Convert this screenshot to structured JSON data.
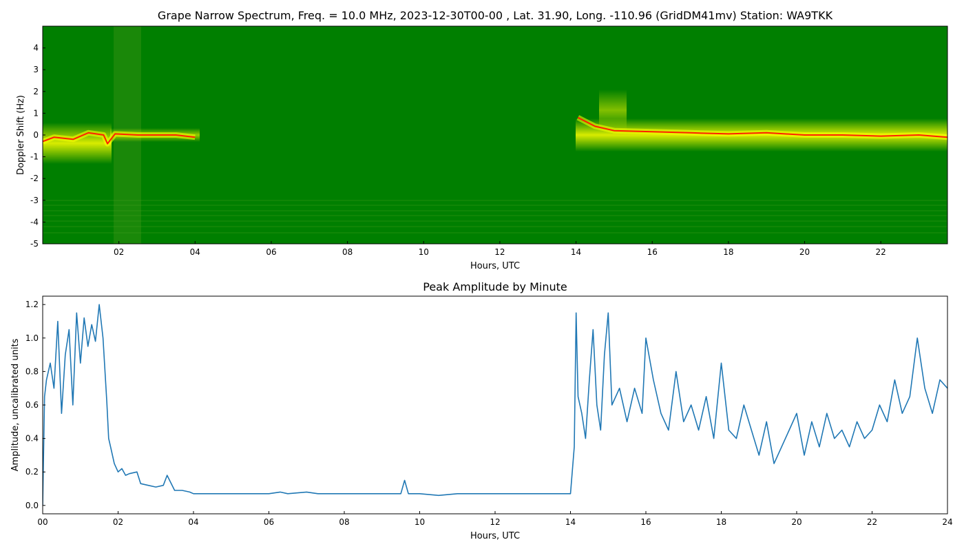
{
  "chart_data": [
    {
      "type": "heatmap",
      "title": "Grape Narrow Spectrum, Freq. = 10.0 MHz, 2023-12-30T00-00 , Lat.  31.90, Long. -110.96 (GridDM41mv) Station: WA9TKK",
      "xlabel": "Hours, UTC",
      "ylabel": "Doppler Shift (Hz)",
      "xlim": [
        0,
        23.75
      ],
      "ylim": [
        -5,
        5
      ],
      "x_ticks": [
        2,
        4,
        6,
        8,
        10,
        12,
        14,
        16,
        18,
        20,
        22
      ],
      "x_tick_labels": [
        "02",
        "04",
        "06",
        "08",
        "10",
        "12",
        "14",
        "16",
        "18",
        "20",
        "22"
      ],
      "y_ticks": [
        -5,
        -4,
        -3,
        -2,
        -1,
        0,
        1,
        2,
        3,
        4
      ],
      "y_tick_labels": [
        "-5",
        "-4",
        "-3",
        "-2",
        "-1",
        "0",
        "1",
        "2",
        "3",
        "4"
      ],
      "colormap": [
        "#007f00",
        "#ffff00",
        "#ff0000"
      ],
      "grid": false,
      "doppler_trace": [
        {
          "x": 0.0,
          "y": -0.3
        },
        {
          "x": 0.3,
          "y": -0.1
        },
        {
          "x": 0.8,
          "y": -0.2
        },
        {
          "x": 1.2,
          "y": 0.1
        },
        {
          "x": 1.6,
          "y": 0.0
        },
        {
          "x": 1.7,
          "y": -0.4
        },
        {
          "x": 1.9,
          "y": 0.05
        },
        {
          "x": 2.5,
          "y": 0.0
        },
        {
          "x": 3.5,
          "y": 0.0
        },
        {
          "x": 4.0,
          "y": -0.1
        },
        {
          "x": 14.05,
          "y": 0.8
        },
        {
          "x": 14.5,
          "y": 0.4
        },
        {
          "x": 15.0,
          "y": 0.2
        },
        {
          "x": 16.0,
          "y": 0.15
        },
        {
          "x": 17.0,
          "y": 0.1
        },
        {
          "x": 18.0,
          "y": 0.05
        },
        {
          "x": 19.0,
          "y": 0.1
        },
        {
          "x": 20.0,
          "y": 0.0
        },
        {
          "x": 21.0,
          "y": 0.0
        },
        {
          "x": 22.0,
          "y": -0.05
        },
        {
          "x": 23.0,
          "y": 0.0
        },
        {
          "x": 23.75,
          "y": -0.1
        }
      ]
    },
    {
      "type": "line",
      "title": "Peak Amplitude by Minute",
      "xlabel": "Hours, UTC",
      "ylabel": "Amplitude, uncalibrated units",
      "xlim": [
        0,
        24
      ],
      "ylim": [
        -0.05,
        1.25
      ],
      "x_ticks": [
        0,
        2,
        4,
        6,
        8,
        10,
        12,
        14,
        16,
        18,
        20,
        22,
        24
      ],
      "x_tick_labels": [
        "00",
        "02",
        "04",
        "06",
        "08",
        "10",
        "12",
        "14",
        "16",
        "18",
        "20",
        "22",
        "24"
      ],
      "y_ticks": [
        0.0,
        0.2,
        0.4,
        0.6,
        0.8,
        1.0,
        1.2
      ],
      "y_tick_labels": [
        "0.0",
        "0.2",
        "0.4",
        "0.6",
        "0.8",
        "1.0",
        "1.2"
      ],
      "grid": false,
      "line_color": "#1f77b4",
      "series": [
        {
          "x": [
            0.0,
            0.05,
            0.1,
            0.2,
            0.3,
            0.4,
            0.5,
            0.6,
            0.7,
            0.8,
            0.9,
            1.0,
            1.1,
            1.2,
            1.3,
            1.4,
            1.5,
            1.6,
            1.7,
            1.75,
            1.8,
            1.85,
            1.9,
            2.0,
            2.1,
            2.2,
            2.3,
            2.5,
            2.6,
            2.8,
            3.0,
            3.2,
            3.3,
            3.5,
            3.7,
            3.9,
            4.0,
            4.5,
            5.0,
            5.5,
            6.0,
            6.3,
            6.5,
            7.0,
            7.3,
            7.5,
            8.0,
            8.5,
            9.0,
            9.5,
            9.6,
            9.7,
            10.0,
            10.5,
            11.0,
            11.5,
            12.0,
            12.5,
            13.0,
            13.5,
            14.0,
            14.1,
            14.15,
            14.2,
            14.3,
            14.4,
            14.5,
            14.6,
            14.7,
            14.8,
            14.9,
            15.0,
            15.1,
            15.3,
            15.5,
            15.7,
            15.9,
            16.0,
            16.2,
            16.4,
            16.6,
            16.8,
            17.0,
            17.2,
            17.4,
            17.6,
            17.8,
            18.0,
            18.2,
            18.4,
            18.6,
            18.8,
            19.0,
            19.2,
            19.4,
            19.6,
            19.8,
            20.0,
            20.2,
            20.4,
            20.6,
            20.8,
            21.0,
            21.2,
            21.4,
            21.6,
            21.8,
            22.0,
            22.2,
            22.4,
            22.6,
            22.8,
            23.0,
            23.2,
            23.4,
            23.6,
            23.8,
            24.0
          ],
          "values": [
            0.0,
            0.65,
            0.75,
            0.85,
            0.7,
            1.1,
            0.55,
            0.9,
            1.05,
            0.6,
            1.15,
            0.85,
            1.12,
            0.95,
            1.08,
            0.98,
            1.2,
            1.0,
            0.62,
            0.4,
            0.35,
            0.3,
            0.25,
            0.2,
            0.22,
            0.18,
            0.19,
            0.2,
            0.13,
            0.12,
            0.11,
            0.12,
            0.18,
            0.09,
            0.09,
            0.08,
            0.07,
            0.07,
            0.07,
            0.07,
            0.07,
            0.08,
            0.07,
            0.08,
            0.07,
            0.07,
            0.07,
            0.07,
            0.07,
            0.07,
            0.15,
            0.07,
            0.07,
            0.06,
            0.07,
            0.07,
            0.07,
            0.07,
            0.07,
            0.07,
            0.07,
            0.35,
            1.15,
            0.65,
            0.55,
            0.4,
            0.75,
            1.05,
            0.6,
            0.45,
            0.9,
            1.15,
            0.6,
            0.7,
            0.5,
            0.7,
            0.55,
            1.0,
            0.75,
            0.55,
            0.45,
            0.8,
            0.5,
            0.6,
            0.45,
            0.65,
            0.4,
            0.85,
            0.45,
            0.4,
            0.6,
            0.45,
            0.3,
            0.5,
            0.25,
            0.35,
            0.45,
            0.55,
            0.3,
            0.5,
            0.35,
            0.55,
            0.4,
            0.45,
            0.35,
            0.5,
            0.4,
            0.45,
            0.6,
            0.5,
            0.75,
            0.55,
            0.65,
            1.0,
            0.7,
            0.55,
            0.75,
            0.7
          ]
        }
      ]
    }
  ]
}
